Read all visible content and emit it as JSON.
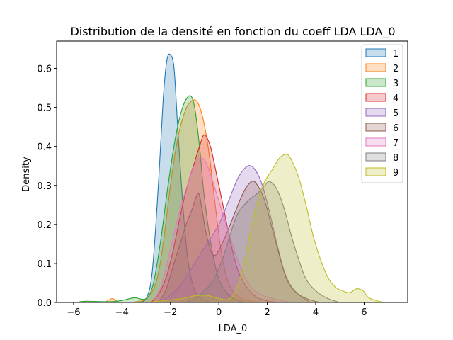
{
  "chart_data": {
    "type": "area",
    "title": "Distribution de la densité en fonction du coeff LDA LDA_0",
    "xlabel": "LDA_0",
    "ylabel": "Density",
    "xlim": [
      -6.7,
      7.8
    ],
    "ylim": [
      0,
      0.67
    ],
    "xticks": [
      -6,
      -4,
      -2,
      0,
      2,
      4,
      6
    ],
    "xtick_labels": [
      "−6",
      "−4",
      "−2",
      "0",
      "2",
      "4",
      "6"
    ],
    "yticks": [
      0.0,
      0.1,
      0.2,
      0.3,
      0.4,
      0.5,
      0.6
    ],
    "ytick_labels": [
      "0.0",
      "0.1",
      "0.2",
      "0.3",
      "0.4",
      "0.5",
      "0.6"
    ],
    "grid": false,
    "legend": {
      "placement": "top-right"
    },
    "series": [
      {
        "name": "1",
        "color": "#1f77b4",
        "points": [
          [
            -3.3,
            0
          ],
          [
            -3.0,
            0.01
          ],
          [
            -2.75,
            0.08
          ],
          [
            -2.5,
            0.3
          ],
          [
            -2.3,
            0.52
          ],
          [
            -2.15,
            0.62
          ],
          [
            -2.0,
            0.635
          ],
          [
            -1.85,
            0.6
          ],
          [
            -1.7,
            0.45
          ],
          [
            -1.5,
            0.26
          ],
          [
            -1.3,
            0.12
          ],
          [
            -1.1,
            0.05
          ],
          [
            -0.9,
            0.02
          ],
          [
            -0.6,
            0.005
          ],
          [
            -0.3,
            0
          ]
        ]
      },
      {
        "name": "2",
        "color": "#ff7f0e",
        "points": [
          [
            -4.7,
            0
          ],
          [
            -4.4,
            0.01
          ],
          [
            -4.1,
            0
          ],
          [
            -3.4,
            0.002
          ],
          [
            -3.0,
            0.01
          ],
          [
            -2.6,
            0.05
          ],
          [
            -2.3,
            0.15
          ],
          [
            -2.0,
            0.3
          ],
          [
            -1.7,
            0.42
          ],
          [
            -1.4,
            0.49
          ],
          [
            -1.15,
            0.515
          ],
          [
            -0.9,
            0.515
          ],
          [
            -0.65,
            0.47
          ],
          [
            -0.4,
            0.38
          ],
          [
            -0.15,
            0.25
          ],
          [
            0.1,
            0.13
          ],
          [
            0.4,
            0.05
          ],
          [
            0.8,
            0.015
          ],
          [
            1.2,
            0.005
          ],
          [
            1.8,
            0
          ]
        ]
      },
      {
        "name": "3",
        "color": "#2ca02c",
        "points": [
          [
            -5.9,
            0
          ],
          [
            -5.5,
            0.003
          ],
          [
            -4.5,
            0.002
          ],
          [
            -4.0,
            0.005
          ],
          [
            -3.5,
            0.012
          ],
          [
            -3.0,
            0.01
          ],
          [
            -2.7,
            0.05
          ],
          [
            -2.4,
            0.16
          ],
          [
            -2.1,
            0.3
          ],
          [
            -1.8,
            0.42
          ],
          [
            -1.5,
            0.5
          ],
          [
            -1.2,
            0.53
          ],
          [
            -1.0,
            0.5
          ],
          [
            -0.8,
            0.4
          ],
          [
            -0.6,
            0.27
          ],
          [
            -0.3,
            0.14
          ],
          [
            0,
            0.06
          ],
          [
            0.4,
            0.02
          ],
          [
            0.8,
            0.005
          ],
          [
            1.3,
            0
          ]
        ]
      },
      {
        "name": "4",
        "color": "#d62728",
        "points": [
          [
            -2.8,
            0
          ],
          [
            -2.5,
            0.02
          ],
          [
            -2.2,
            0.06
          ],
          [
            -1.9,
            0.13
          ],
          [
            -1.6,
            0.22
          ],
          [
            -1.3,
            0.3
          ],
          [
            -1.05,
            0.35
          ],
          [
            -0.8,
            0.4
          ],
          [
            -0.6,
            0.43
          ],
          [
            -0.35,
            0.4
          ],
          [
            -0.1,
            0.33
          ],
          [
            0.2,
            0.24
          ],
          [
            0.5,
            0.15
          ],
          [
            0.8,
            0.08
          ],
          [
            1.2,
            0.035
          ],
          [
            1.6,
            0.012
          ],
          [
            2.1,
            0.003
          ],
          [
            2.6,
            0
          ]
        ]
      },
      {
        "name": "5",
        "color": "#9467bd",
        "points": [
          [
            -2.6,
            0
          ],
          [
            -2.2,
            0.01
          ],
          [
            -1.8,
            0.03
          ],
          [
            -1.4,
            0.06
          ],
          [
            -1.0,
            0.1
          ],
          [
            -0.5,
            0.15
          ],
          [
            0,
            0.2
          ],
          [
            0.4,
            0.26
          ],
          [
            0.8,
            0.32
          ],
          [
            1.2,
            0.35
          ],
          [
            1.5,
            0.34
          ],
          [
            1.8,
            0.3
          ],
          [
            2.1,
            0.23
          ],
          [
            2.4,
            0.15
          ],
          [
            2.7,
            0.08
          ],
          [
            3.0,
            0.04
          ],
          [
            3.4,
            0.015
          ],
          [
            3.8,
            0
          ]
        ]
      },
      {
        "name": "6",
        "color": "#8c564b",
        "points": [
          [
            -2.5,
            0
          ],
          [
            -2.2,
            0.03
          ],
          [
            -1.9,
            0.09
          ],
          [
            -1.6,
            0.15
          ],
          [
            -1.35,
            0.2
          ],
          [
            -1.1,
            0.24
          ],
          [
            -0.85,
            0.28
          ],
          [
            -0.7,
            0.24
          ],
          [
            -0.5,
            0.17
          ],
          [
            -0.2,
            0.12
          ],
          [
            0.2,
            0.16
          ],
          [
            0.6,
            0.22
          ],
          [
            1.0,
            0.28
          ],
          [
            1.35,
            0.31
          ],
          [
            1.6,
            0.3
          ],
          [
            1.9,
            0.26
          ],
          [
            2.2,
            0.19
          ],
          [
            2.5,
            0.12
          ],
          [
            2.8,
            0.06
          ],
          [
            3.2,
            0.025
          ],
          [
            3.7,
            0.008
          ],
          [
            4.2,
            0
          ]
        ]
      },
      {
        "name": "7",
        "color": "#e377c2",
        "points": [
          [
            -2.7,
            0
          ],
          [
            -2.4,
            0.04
          ],
          [
            -2.1,
            0.11
          ],
          [
            -1.8,
            0.19
          ],
          [
            -1.5,
            0.26
          ],
          [
            -1.2,
            0.32
          ],
          [
            -0.95,
            0.36
          ],
          [
            -0.7,
            0.37
          ],
          [
            -0.5,
            0.355
          ],
          [
            -0.25,
            0.31
          ],
          [
            0,
            0.26
          ],
          [
            0.3,
            0.2
          ],
          [
            0.6,
            0.14
          ],
          [
            0.9,
            0.09
          ],
          [
            1.2,
            0.05
          ],
          [
            1.6,
            0.025
          ],
          [
            2.2,
            0.01
          ],
          [
            3.0,
            0
          ]
        ]
      },
      {
        "name": "8",
        "color": "#7f7f7f",
        "points": [
          [
            -1.4,
            0
          ],
          [
            -1.0,
            0.01
          ],
          [
            -0.6,
            0.03
          ],
          [
            -0.2,
            0.06
          ],
          [
            0.2,
            0.12
          ],
          [
            0.5,
            0.18
          ],
          [
            0.8,
            0.23
          ],
          [
            1.2,
            0.26
          ],
          [
            1.6,
            0.28
          ],
          [
            1.9,
            0.3
          ],
          [
            2.1,
            0.31
          ],
          [
            2.4,
            0.29
          ],
          [
            2.7,
            0.24
          ],
          [
            3.0,
            0.17
          ],
          [
            3.3,
            0.11
          ],
          [
            3.6,
            0.06
          ],
          [
            4.0,
            0.03
          ],
          [
            4.5,
            0.01
          ],
          [
            5.0,
            0
          ]
        ]
      },
      {
        "name": "9",
        "color": "#bcbd22",
        "points": [
          [
            -3.0,
            0
          ],
          [
            -2.2,
            0.005
          ],
          [
            -1.5,
            0.01
          ],
          [
            -1.0,
            0.017
          ],
          [
            -0.5,
            0.018
          ],
          [
            0,
            0.01
          ],
          [
            0.4,
            0.008
          ],
          [
            0.7,
            0.03
          ],
          [
            1.0,
            0.09
          ],
          [
            1.3,
            0.18
          ],
          [
            1.6,
            0.26
          ],
          [
            1.9,
            0.31
          ],
          [
            2.2,
            0.34
          ],
          [
            2.5,
            0.37
          ],
          [
            2.8,
            0.38
          ],
          [
            3.0,
            0.365
          ],
          [
            3.3,
            0.32
          ],
          [
            3.6,
            0.25
          ],
          [
            3.9,
            0.17
          ],
          [
            4.2,
            0.11
          ],
          [
            4.5,
            0.065
          ],
          [
            4.8,
            0.04
          ],
          [
            5.1,
            0.03
          ],
          [
            5.4,
            0.025
          ],
          [
            5.7,
            0.035
          ],
          [
            5.95,
            0.03
          ],
          [
            6.2,
            0.012
          ],
          [
            6.6,
            0.003
          ],
          [
            7.0,
            0
          ]
        ]
      }
    ]
  }
}
